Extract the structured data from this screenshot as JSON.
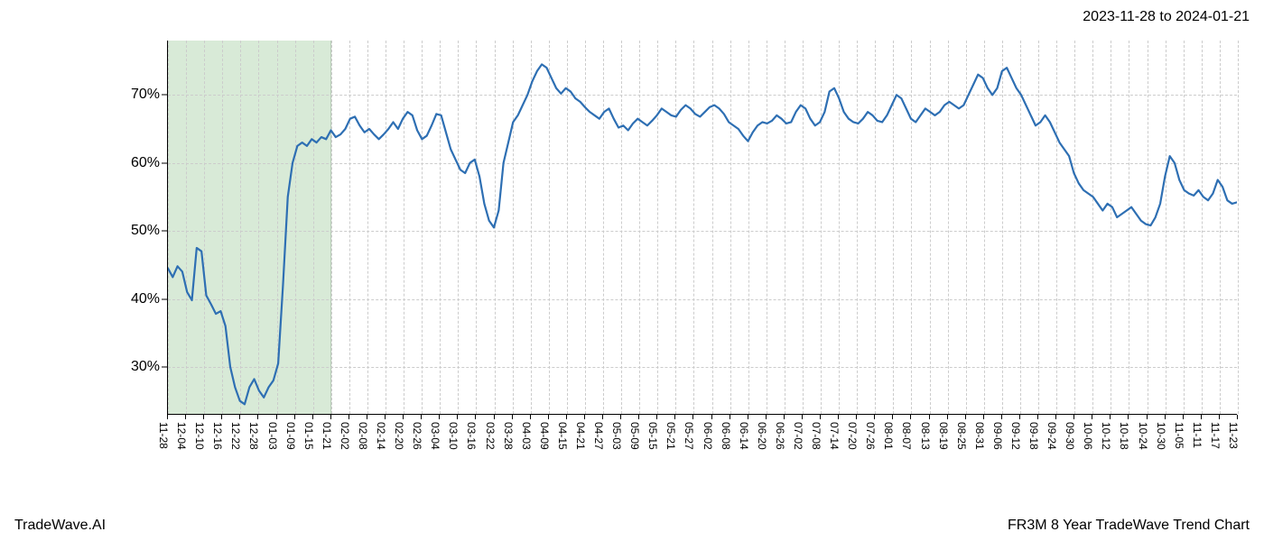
{
  "header": {
    "date_range": "2023-11-28 to 2024-01-21"
  },
  "footer": {
    "brand": "TradeWave.AI",
    "title": "FR3M 8 Year TradeWave Trend Chart"
  },
  "chart": {
    "type": "line",
    "background_color": "#ffffff",
    "grid_color": "#cccccc",
    "axis_color": "#000000",
    "highlight_band": {
      "color": "#d8ead7",
      "x_start_index": 0,
      "x_end_index": 9
    },
    "line": {
      "color": "#2e6fb3",
      "width": 2.2
    },
    "ylim": [
      23,
      78
    ],
    "ytick_values": [
      30,
      40,
      50,
      60,
      70
    ],
    "ytick_labels": [
      "30%",
      "40%",
      "50%",
      "60%",
      "70%"
    ],
    "x_labels": [
      "11-28",
      "12-04",
      "12-10",
      "12-16",
      "12-22",
      "12-28",
      "01-03",
      "01-09",
      "01-15",
      "01-21",
      "02-02",
      "02-08",
      "02-14",
      "02-20",
      "02-26",
      "03-04",
      "03-10",
      "03-16",
      "03-22",
      "03-28",
      "04-03",
      "04-09",
      "04-15",
      "04-21",
      "04-27",
      "05-03",
      "05-09",
      "05-15",
      "05-21",
      "05-27",
      "06-02",
      "06-08",
      "06-14",
      "06-20",
      "06-26",
      "07-02",
      "07-08",
      "07-14",
      "07-20",
      "07-26",
      "08-01",
      "08-07",
      "08-13",
      "08-19",
      "08-25",
      "08-31",
      "09-06",
      "09-12",
      "09-18",
      "09-24",
      "09-30",
      "10-06",
      "10-12",
      "10-18",
      "10-24",
      "10-30",
      "11-05",
      "11-11",
      "11-17",
      "11-23"
    ],
    "tick_fontsize": 12,
    "ylabel_fontsize": 16,
    "values": [
      44.5,
      43.2,
      44.8,
      44.0,
      41.0,
      39.8,
      47.5,
      47.0,
      40.5,
      39.2,
      37.8,
      38.2,
      36.0,
      30.0,
      27.0,
      25.0,
      24.5,
      27.0,
      28.2,
      26.5,
      25.5,
      27.0,
      28.0,
      30.5,
      42.0,
      55.0,
      60.0,
      62.5,
      63.0,
      62.5,
      63.5,
      63.0,
      63.8,
      63.5,
      64.8,
      63.8,
      64.2,
      65.0,
      66.5,
      66.8,
      65.5,
      64.5,
      65.0,
      64.2,
      63.5,
      64.2,
      65.0,
      66.0,
      65.0,
      66.5,
      67.5,
      67.0,
      64.8,
      63.5,
      64.0,
      65.5,
      67.2,
      67.0,
      64.5,
      62.0,
      60.5,
      59.0,
      58.5,
      60.0,
      60.5,
      58.0,
      54.0,
      51.5,
      50.5,
      53.0,
      60.0,
      63.0,
      66.0,
      67.0,
      68.5,
      70.0,
      72.0,
      73.5,
      74.5,
      74.0,
      72.5,
      71.0,
      70.2,
      71.0,
      70.5,
      69.5,
      69.0,
      68.2,
      67.5,
      67.0,
      66.5,
      67.5,
      68.0,
      66.5,
      65.2,
      65.5,
      64.8,
      65.8,
      66.5,
      66.0,
      65.5,
      66.2,
      67.0,
      68.0,
      67.5,
      67.0,
      66.8,
      67.8,
      68.5,
      68.0,
      67.2,
      66.8,
      67.5,
      68.2,
      68.5,
      68.0,
      67.2,
      66.0,
      65.5,
      65.0,
      64.0,
      63.2,
      64.5,
      65.5,
      66.0,
      65.8,
      66.2,
      67.0,
      66.5,
      65.8,
      66.0,
      67.5,
      68.5,
      68.0,
      66.5,
      65.5,
      66.0,
      67.5,
      70.5,
      71.0,
      69.5,
      67.5,
      66.5,
      66.0,
      65.8,
      66.5,
      67.5,
      67.0,
      66.2,
      66.0,
      67.0,
      68.5,
      70.0,
      69.5,
      68.0,
      66.5,
      66.0,
      67.0,
      68.0,
      67.5,
      67.0,
      67.5,
      68.5,
      69.0,
      68.5,
      68.0,
      68.5,
      70.0,
      71.5,
      73.0,
      72.5,
      71.0,
      70.0,
      71.0,
      73.5,
      74.0,
      72.5,
      71.0,
      70.0,
      68.5,
      67.0,
      65.5,
      66.0,
      67.0,
      66.0,
      64.5,
      63.0,
      62.0,
      61.0,
      58.5,
      57.0,
      56.0,
      55.5,
      55.0,
      54.0,
      53.0,
      54.0,
      53.5,
      52.0,
      52.5,
      53.0,
      53.5,
      52.5,
      51.5,
      51.0,
      50.8,
      52.0,
      54.0,
      58.0,
      61.0,
      60.0,
      57.5,
      56.0,
      55.5,
      55.2,
      56.0,
      55.0,
      54.5,
      55.5,
      57.5,
      56.5,
      54.5,
      54.0,
      54.2
    ]
  }
}
